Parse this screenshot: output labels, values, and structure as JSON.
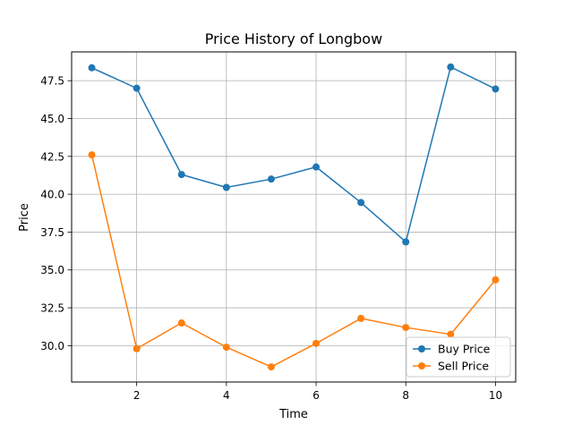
{
  "chart_data": {
    "type": "line",
    "title": "Price History of Longbow",
    "xlabel": "Time",
    "ylabel": "Price",
    "x": [
      1,
      2,
      3,
      4,
      5,
      6,
      7,
      8,
      9,
      10
    ],
    "series": [
      {
        "name": "Buy Price",
        "color": "#1f77b4",
        "marker": "circle",
        "values": [
          48.35,
          47.0,
          41.3,
          40.45,
          41.0,
          41.8,
          39.45,
          36.85,
          48.4,
          46.95
        ]
      },
      {
        "name": "Sell Price",
        "color": "#ff7f0e",
        "marker": "circle",
        "values": [
          42.6,
          29.8,
          31.5,
          29.9,
          28.6,
          30.15,
          31.8,
          31.2,
          30.75,
          34.35
        ]
      }
    ],
    "xlim": [
      0.55,
      10.45
    ],
    "ylim": [
      27.6,
      49.4
    ],
    "xticks": [
      2,
      4,
      6,
      8,
      10
    ],
    "xtick_labels": [
      "2",
      "4",
      "6",
      "8",
      "10"
    ],
    "yticks": [
      30.0,
      32.5,
      35.0,
      37.5,
      40.0,
      42.5,
      45.0,
      47.5
    ],
    "ytick_labels": [
      "30.0",
      "32.5",
      "35.0",
      "37.5",
      "40.0",
      "42.5",
      "45.0",
      "47.5"
    ],
    "grid": true,
    "legend_position": "lower-right"
  }
}
